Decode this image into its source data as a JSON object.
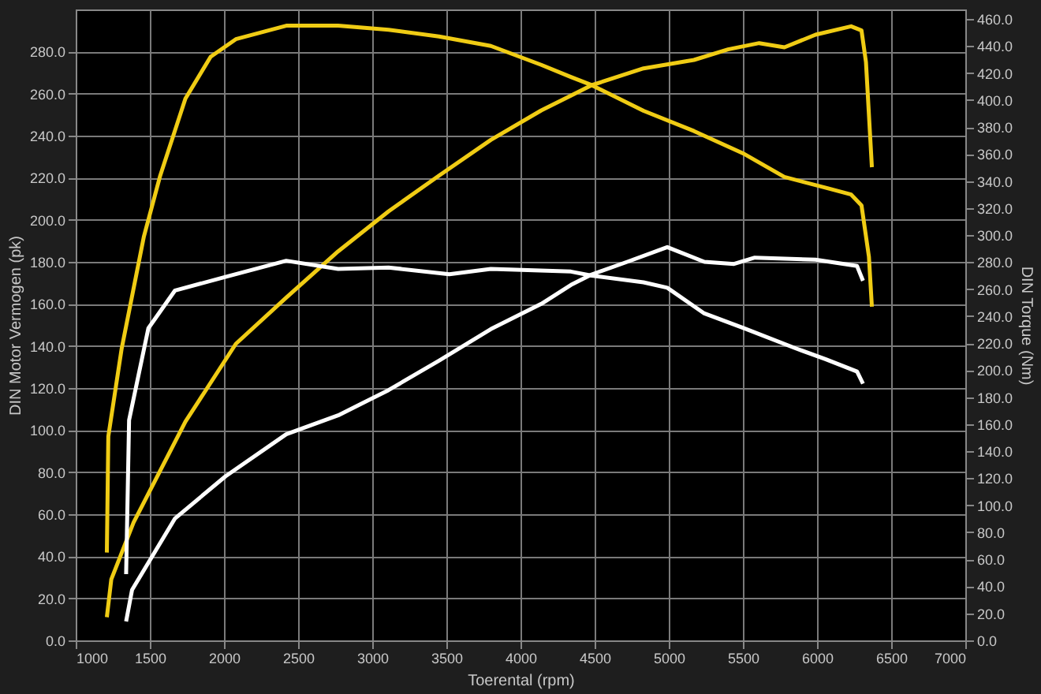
{
  "chart_data": {
    "type": "line",
    "xlabel": "Toerental (rpm)",
    "ylabel": "DIN Motor Vermogen (pk)",
    "y2label": "DIN Torque (Nm)",
    "xlim": [
      1000,
      7000
    ],
    "xticks": [
      1000,
      1500,
      2000,
      2500,
      3000,
      3500,
      4000,
      4500,
      5000,
      5500,
      6000,
      6500,
      7000
    ],
    "ylim": [
      0,
      300
    ],
    "yticks": [
      {
        "value": 0,
        "label": "0.0"
      },
      {
        "value": 20,
        "label": "20.0"
      },
      {
        "value": 40,
        "label": "40.0"
      },
      {
        "value": 60,
        "label": "60.0"
      },
      {
        "value": 80,
        "label": "80.0"
      },
      {
        "value": 100,
        "label": "100.0"
      },
      {
        "value": 120,
        "label": "120.0"
      },
      {
        "value": 140,
        "label": "140.0"
      },
      {
        "value": 160,
        "label": "160.0"
      },
      {
        "value": 180,
        "label": "180.0"
      },
      {
        "value": 200,
        "label": "200.0"
      },
      {
        "value": 220,
        "label": "220.0"
      },
      {
        "value": 240,
        "label": "240.0"
      },
      {
        "value": 260,
        "label": "260.0"
      },
      {
        "value": 280,
        "label": "280.0"
      }
    ],
    "y2lim": [
      0,
      467
    ],
    "y2ticks": [
      {
        "value": 0,
        "label": "0.0"
      },
      {
        "value": 20,
        "label": "20.0"
      },
      {
        "value": 40,
        "label": "40.0"
      },
      {
        "value": 60,
        "label": "60.0"
      },
      {
        "value": 80,
        "label": "80.0"
      },
      {
        "value": 100,
        "label": "100.0"
      },
      {
        "value": 120,
        "label": "120.0"
      },
      {
        "value": 140,
        "label": "140.0"
      },
      {
        "value": 160,
        "label": "160.0"
      },
      {
        "value": 180,
        "label": "180.0"
      },
      {
        "value": 200,
        "label": "200.0"
      },
      {
        "value": 220,
        "label": "220.0"
      },
      {
        "value": 240,
        "label": "240.0"
      },
      {
        "value": 260,
        "label": "260.0"
      },
      {
        "value": 280,
        "label": "280.0"
      },
      {
        "value": 300,
        "label": "300.0"
      },
      {
        "value": 320,
        "label": "320.0"
      },
      {
        "value": 340,
        "label": "340.0"
      },
      {
        "value": 360,
        "label": "360.0"
      },
      {
        "value": 380,
        "label": "380.0"
      },
      {
        "value": 400,
        "label": "400.0"
      },
      {
        "value": 420,
        "label": "420.0"
      },
      {
        "value": 440,
        "label": "440.0"
      },
      {
        "value": 460,
        "label": "460.0"
      }
    ],
    "grid": true,
    "marker": "none",
    "line_style": "solid",
    "legend": false,
    "series": [
      {
        "color": "#f0cc14",
        "x": [
          1210,
          1240,
          1390,
          1740,
          2080,
          2420,
          2770,
          3110,
          3450,
          3800,
          4140,
          4340,
          4480,
          4830,
          5170,
          5400,
          5610,
          5780,
          5990,
          6230,
          6300,
          6330,
          6370
        ],
        "values": [
          11,
          29,
          56,
          104,
          141,
          163,
          185,
          204,
          221,
          238,
          252,
          259,
          264,
          272,
          276,
          281,
          284,
          282,
          288,
          292,
          290,
          275,
          225
        ]
      },
      {
        "color": "#ffffff",
        "x": [
          1340,
          1380,
          1670,
          2010,
          2420,
          2770,
          3110,
          3450,
          3800,
          4140,
          4340,
          4480,
          4720,
          4990,
          5240,
          5440,
          5580,
          5990,
          6270,
          6310
        ],
        "values": [
          9,
          24,
          58,
          78,
          98,
          107,
          119,
          133,
          148,
          160,
          169,
          174,
          180,
          187,
          180,
          179,
          182,
          181,
          178,
          171
        ]
      },
      {
        "color": "#f0cc14",
        "axis": "y2",
        "x": [
          1210,
          1220,
          1310,
          1460,
          1570,
          1740,
          1910,
          2080,
          2420,
          2770,
          3110,
          3450,
          3800,
          4140,
          4340,
          4480,
          4830,
          5170,
          5510,
          5780,
          6060,
          6230,
          6300,
          6350,
          6370
        ],
        "values": [
          65,
          151,
          216,
          299,
          344,
          401,
          432,
          445,
          455,
          455,
          452,
          447,
          440,
          426,
          417,
          411,
          392,
          377,
          360,
          343,
          335,
          330,
          322,
          284,
          247
        ]
      },
      {
        "color": "#ffffff",
        "axis": "y2",
        "x": [
          1340,
          1360,
          1490,
          1670,
          2010,
          2420,
          2770,
          3110,
          3520,
          3800,
          4340,
          4480,
          4830,
          4990,
          5240,
          5510,
          5860,
          6060,
          6270,
          6310
        ],
        "values": [
          49,
          163,
          231,
          259,
          269,
          281,
          275,
          276,
          271,
          275,
          273,
          270,
          265,
          261,
          242,
          231,
          216,
          208,
          199,
          190
        ]
      }
    ]
  }
}
